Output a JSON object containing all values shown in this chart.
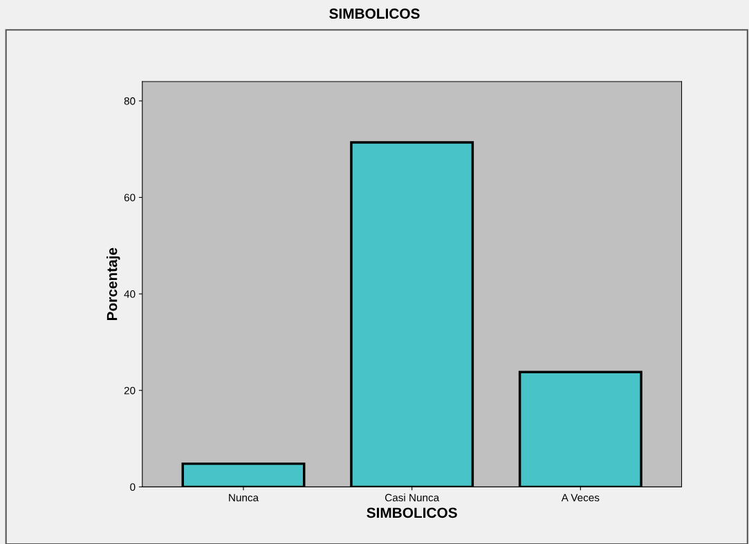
{
  "chart_data": {
    "type": "bar",
    "title": "SIMBOLICOS",
    "xlabel": "SIMBOLICOS",
    "ylabel": "Porcentaje",
    "categories": [
      "Nunca",
      "Casi Nunca",
      "A Veces"
    ],
    "values": [
      4.8,
      71.4,
      23.8
    ],
    "color": "#48c4c8",
    "ylim": [
      0,
      84
    ],
    "yticks": [
      0,
      20,
      40,
      60,
      80
    ],
    "grid": false,
    "legend": false
  }
}
